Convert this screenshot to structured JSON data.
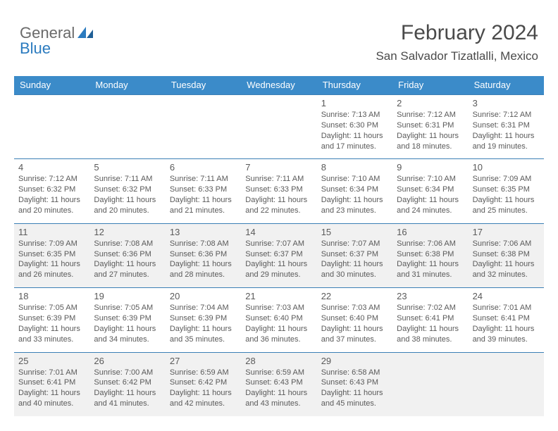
{
  "logo": {
    "word1": "General",
    "word2": "Blue"
  },
  "title": "February 2024",
  "location": "San Salvador Tizatlalli, Mexico",
  "colors": {
    "header_bg": "#3b8bc9",
    "row_divider": "#3b7fb5",
    "shaded_bg": "#f1f1f1",
    "text": "#5a5a5a",
    "logo_gray": "#6a6a6a",
    "logo_blue": "#2b7bbf",
    "page_bg": "#ffffff"
  },
  "weekdays": [
    "Sunday",
    "Monday",
    "Tuesday",
    "Wednesday",
    "Thursday",
    "Friday",
    "Saturday"
  ],
  "weeks": [
    {
      "shaded": false,
      "days": [
        {
          "num": "",
          "sunrise": "",
          "sunset": "",
          "daylight": ""
        },
        {
          "num": "",
          "sunrise": "",
          "sunset": "",
          "daylight": ""
        },
        {
          "num": "",
          "sunrise": "",
          "sunset": "",
          "daylight": ""
        },
        {
          "num": "",
          "sunrise": "",
          "sunset": "",
          "daylight": ""
        },
        {
          "num": "1",
          "sunrise": "Sunrise: 7:13 AM",
          "sunset": "Sunset: 6:30 PM",
          "daylight": "Daylight: 11 hours and 17 minutes."
        },
        {
          "num": "2",
          "sunrise": "Sunrise: 7:12 AM",
          "sunset": "Sunset: 6:31 PM",
          "daylight": "Daylight: 11 hours and 18 minutes."
        },
        {
          "num": "3",
          "sunrise": "Sunrise: 7:12 AM",
          "sunset": "Sunset: 6:31 PM",
          "daylight": "Daylight: 11 hours and 19 minutes."
        }
      ]
    },
    {
      "shaded": false,
      "days": [
        {
          "num": "4",
          "sunrise": "Sunrise: 7:12 AM",
          "sunset": "Sunset: 6:32 PM",
          "daylight": "Daylight: 11 hours and 20 minutes."
        },
        {
          "num": "5",
          "sunrise": "Sunrise: 7:11 AM",
          "sunset": "Sunset: 6:32 PM",
          "daylight": "Daylight: 11 hours and 20 minutes."
        },
        {
          "num": "6",
          "sunrise": "Sunrise: 7:11 AM",
          "sunset": "Sunset: 6:33 PM",
          "daylight": "Daylight: 11 hours and 21 minutes."
        },
        {
          "num": "7",
          "sunrise": "Sunrise: 7:11 AM",
          "sunset": "Sunset: 6:33 PM",
          "daylight": "Daylight: 11 hours and 22 minutes."
        },
        {
          "num": "8",
          "sunrise": "Sunrise: 7:10 AM",
          "sunset": "Sunset: 6:34 PM",
          "daylight": "Daylight: 11 hours and 23 minutes."
        },
        {
          "num": "9",
          "sunrise": "Sunrise: 7:10 AM",
          "sunset": "Sunset: 6:34 PM",
          "daylight": "Daylight: 11 hours and 24 minutes."
        },
        {
          "num": "10",
          "sunrise": "Sunrise: 7:09 AM",
          "sunset": "Sunset: 6:35 PM",
          "daylight": "Daylight: 11 hours and 25 minutes."
        }
      ]
    },
    {
      "shaded": true,
      "days": [
        {
          "num": "11",
          "sunrise": "Sunrise: 7:09 AM",
          "sunset": "Sunset: 6:35 PM",
          "daylight": "Daylight: 11 hours and 26 minutes."
        },
        {
          "num": "12",
          "sunrise": "Sunrise: 7:08 AM",
          "sunset": "Sunset: 6:36 PM",
          "daylight": "Daylight: 11 hours and 27 minutes."
        },
        {
          "num": "13",
          "sunrise": "Sunrise: 7:08 AM",
          "sunset": "Sunset: 6:36 PM",
          "daylight": "Daylight: 11 hours and 28 minutes."
        },
        {
          "num": "14",
          "sunrise": "Sunrise: 7:07 AM",
          "sunset": "Sunset: 6:37 PM",
          "daylight": "Daylight: 11 hours and 29 minutes."
        },
        {
          "num": "15",
          "sunrise": "Sunrise: 7:07 AM",
          "sunset": "Sunset: 6:37 PM",
          "daylight": "Daylight: 11 hours and 30 minutes."
        },
        {
          "num": "16",
          "sunrise": "Sunrise: 7:06 AM",
          "sunset": "Sunset: 6:38 PM",
          "daylight": "Daylight: 11 hours and 31 minutes."
        },
        {
          "num": "17",
          "sunrise": "Sunrise: 7:06 AM",
          "sunset": "Sunset: 6:38 PM",
          "daylight": "Daylight: 11 hours and 32 minutes."
        }
      ]
    },
    {
      "shaded": false,
      "days": [
        {
          "num": "18",
          "sunrise": "Sunrise: 7:05 AM",
          "sunset": "Sunset: 6:39 PM",
          "daylight": "Daylight: 11 hours and 33 minutes."
        },
        {
          "num": "19",
          "sunrise": "Sunrise: 7:05 AM",
          "sunset": "Sunset: 6:39 PM",
          "daylight": "Daylight: 11 hours and 34 minutes."
        },
        {
          "num": "20",
          "sunrise": "Sunrise: 7:04 AM",
          "sunset": "Sunset: 6:39 PM",
          "daylight": "Daylight: 11 hours and 35 minutes."
        },
        {
          "num": "21",
          "sunrise": "Sunrise: 7:03 AM",
          "sunset": "Sunset: 6:40 PM",
          "daylight": "Daylight: 11 hours and 36 minutes."
        },
        {
          "num": "22",
          "sunrise": "Sunrise: 7:03 AM",
          "sunset": "Sunset: 6:40 PM",
          "daylight": "Daylight: 11 hours and 37 minutes."
        },
        {
          "num": "23",
          "sunrise": "Sunrise: 7:02 AM",
          "sunset": "Sunset: 6:41 PM",
          "daylight": "Daylight: 11 hours and 38 minutes."
        },
        {
          "num": "24",
          "sunrise": "Sunrise: 7:01 AM",
          "sunset": "Sunset: 6:41 PM",
          "daylight": "Daylight: 11 hours and 39 minutes."
        }
      ]
    },
    {
      "shaded": true,
      "days": [
        {
          "num": "25",
          "sunrise": "Sunrise: 7:01 AM",
          "sunset": "Sunset: 6:41 PM",
          "daylight": "Daylight: 11 hours and 40 minutes."
        },
        {
          "num": "26",
          "sunrise": "Sunrise: 7:00 AM",
          "sunset": "Sunset: 6:42 PM",
          "daylight": "Daylight: 11 hours and 41 minutes."
        },
        {
          "num": "27",
          "sunrise": "Sunrise: 6:59 AM",
          "sunset": "Sunset: 6:42 PM",
          "daylight": "Daylight: 11 hours and 42 minutes."
        },
        {
          "num": "28",
          "sunrise": "Sunrise: 6:59 AM",
          "sunset": "Sunset: 6:43 PM",
          "daylight": "Daylight: 11 hours and 43 minutes."
        },
        {
          "num": "29",
          "sunrise": "Sunrise: 6:58 AM",
          "sunset": "Sunset: 6:43 PM",
          "daylight": "Daylight: 11 hours and 45 minutes."
        },
        {
          "num": "",
          "sunrise": "",
          "sunset": "",
          "daylight": ""
        },
        {
          "num": "",
          "sunrise": "",
          "sunset": "",
          "daylight": ""
        }
      ]
    }
  ]
}
